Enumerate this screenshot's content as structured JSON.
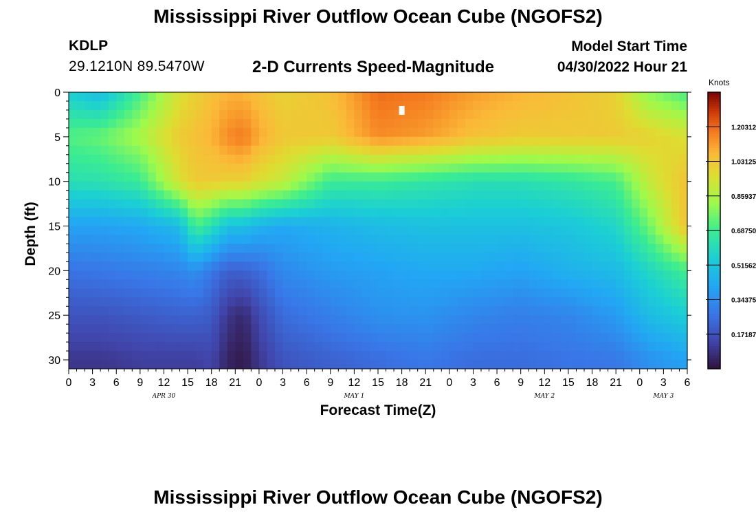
{
  "header": {
    "title": "Mississippi River Outflow Ocean Cube (NGOFS2)",
    "station": "KDLP",
    "coords": "29.1210N  89.5470W",
    "subtitle": "2-D Currents Speed-Magnitude",
    "model_start_label": "Model Start Time",
    "model_start_value": "04/30/2022 Hour 21"
  },
  "footer": {
    "title": "Mississippi River Outflow Ocean Cube (NGOFS2)"
  },
  "chart_data": {
    "type": "heatmap",
    "title": "2-D Currents Speed-Magnitude",
    "xlabel": "Forecast Time(Z)",
    "ylabel": "Depth (ft)",
    "colorbar_label": "Knots",
    "colorbar_ticks": [
      "1.20312",
      "1.03125",
      "0.85937",
      "0.68750",
      "0.51562",
      "0.34375",
      "0.17187"
    ],
    "colorbar_range": [
      0.0,
      1.375
    ],
    "x_ticks": [
      "0",
      "3",
      "6",
      "9",
      "12",
      "15",
      "18",
      "21",
      "0",
      "3",
      "6",
      "9",
      "12",
      "15",
      "18",
      "21",
      "0",
      "3",
      "6",
      "9",
      "12",
      "15",
      "18",
      "21",
      "0",
      "3",
      "6"
    ],
    "date_labels": [
      {
        "text": "APR 30",
        "hour": 12
      },
      {
        "text": "MAY 1",
        "hour": 36
      },
      {
        "text": "MAY 2",
        "hour": 60
      },
      {
        "text": "MAY 3",
        "hour": 75
      }
    ],
    "y_ticks": [
      0,
      5,
      10,
      15,
      20,
      25,
      30
    ],
    "xlim": [
      0,
      78
    ],
    "ylim": [
      31,
      0
    ],
    "depth_levels_ft": [
      0,
      5,
      10,
      15,
      20,
      25,
      30
    ],
    "speed_profiles": [
      {
        "hour": 0,
        "speeds": [
          0.55,
          0.72,
          0.62,
          0.4,
          0.27,
          0.18,
          0.1
        ]
      },
      {
        "hour": 4,
        "speeds": [
          0.48,
          0.75,
          0.63,
          0.4,
          0.28,
          0.18,
          0.1
        ]
      },
      {
        "hour": 9,
        "speeds": [
          0.7,
          0.85,
          0.68,
          0.42,
          0.3,
          0.2,
          0.12
        ]
      },
      {
        "hour": 14,
        "speeds": [
          0.95,
          1.02,
          0.95,
          0.48,
          0.32,
          0.22,
          0.12
        ]
      },
      {
        "hour": 16,
        "speeds": [
          1.0,
          1.05,
          1.02,
          0.7,
          0.35,
          0.22,
          0.12
        ]
      },
      {
        "hour": 18,
        "speeds": [
          1.05,
          1.08,
          1.02,
          0.62,
          0.28,
          0.2,
          0.14
        ]
      },
      {
        "hour": 20,
        "speeds": [
          1.08,
          1.15,
          1.0,
          0.5,
          0.22,
          0.1,
          0.05
        ]
      },
      {
        "hour": 22,
        "speeds": [
          1.08,
          1.18,
          1.0,
          0.5,
          0.22,
          0.06,
          0.02
        ]
      },
      {
        "hour": 24,
        "speeds": [
          1.05,
          1.1,
          0.95,
          0.45,
          0.25,
          0.15,
          0.1
        ]
      },
      {
        "hour": 27,
        "speeds": [
          1.0,
          1.03,
          0.9,
          0.42,
          0.33,
          0.25,
          0.18
        ]
      },
      {
        "hour": 33,
        "speeds": [
          1.05,
          1.02,
          0.68,
          0.45,
          0.38,
          0.3,
          0.22
        ]
      },
      {
        "hour": 39,
        "speeds": [
          1.2,
          1.15,
          0.68,
          0.48,
          0.4,
          0.35,
          0.25
        ]
      },
      {
        "hour": 45,
        "speeds": [
          1.18,
          1.12,
          0.65,
          0.5,
          0.42,
          0.36,
          0.28
        ]
      },
      {
        "hour": 51,
        "speeds": [
          1.12,
          1.05,
          0.62,
          0.5,
          0.42,
          0.32,
          0.25
        ]
      },
      {
        "hour": 57,
        "speeds": [
          1.08,
          1.02,
          0.62,
          0.5,
          0.4,
          0.3,
          0.25
        ]
      },
      {
        "hour": 63,
        "speeds": [
          1.05,
          1.02,
          0.65,
          0.52,
          0.45,
          0.32,
          0.27
        ]
      },
      {
        "hour": 69,
        "speeds": [
          1.0,
          1.02,
          0.7,
          0.58,
          0.48,
          0.38,
          0.28
        ]
      },
      {
        "hour": 73,
        "speeds": [
          0.8,
          1.0,
          0.9,
          0.75,
          0.58,
          0.48,
          0.35
        ]
      },
      {
        "hour": 78,
        "speeds": [
          0.7,
          0.95,
          1.05,
          1.05,
          0.7,
          0.55,
          0.4
        ]
      }
    ],
    "marker": {
      "hour": 42,
      "depth": 2
    }
  }
}
